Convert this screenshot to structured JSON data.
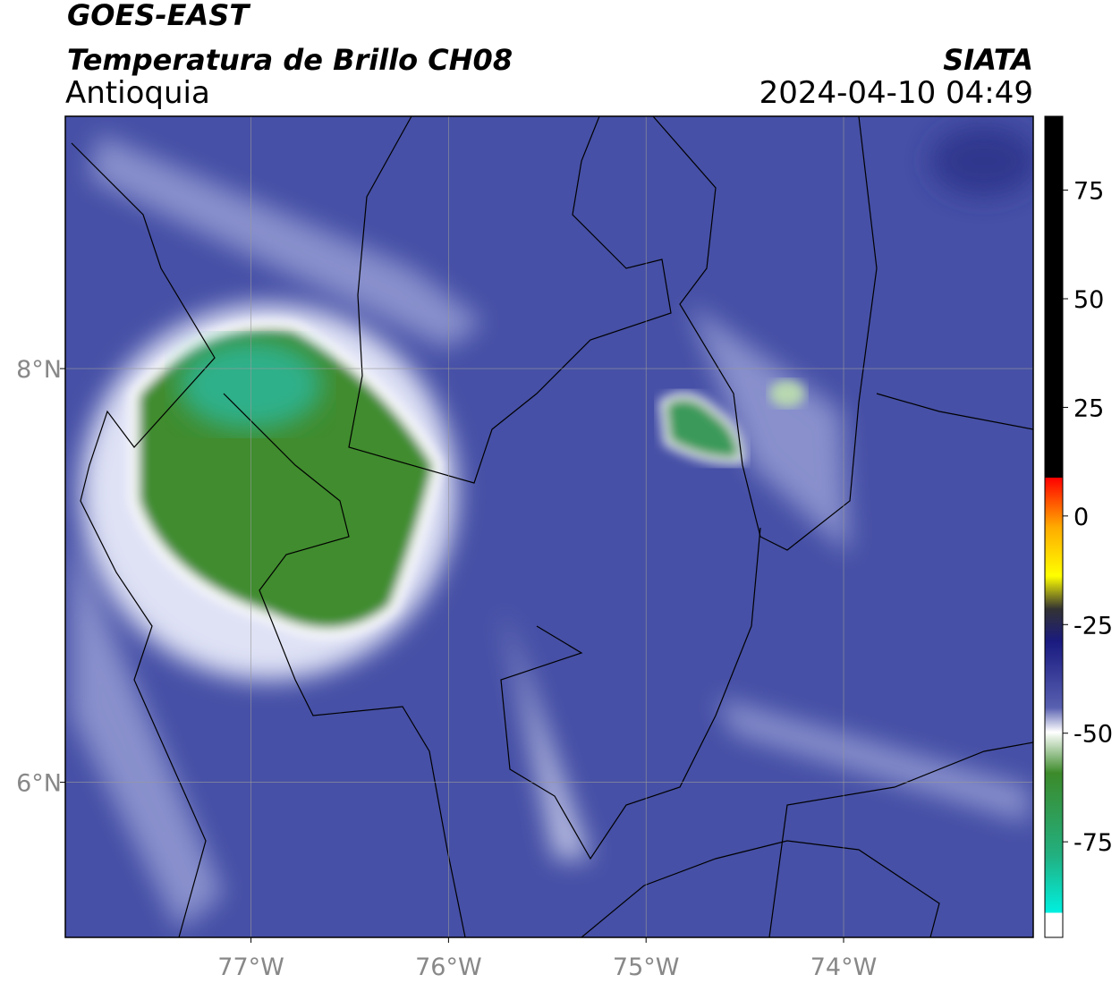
{
  "title": "GOES-EAST",
  "subtitle": "Temperatura de Brillo CH08",
  "region": "Antioquia",
  "agency": "SIATA",
  "datetime": "2024-04-10 04:49",
  "map": {
    "xlim": [
      -77.94,
      -73.04
    ],
    "ylim": [
      5.25,
      9.22
    ],
    "xticks": [
      {
        "value": -77,
        "label": "77°W"
      },
      {
        "value": -76,
        "label": "76°W"
      },
      {
        "value": -75,
        "label": "75°W"
      },
      {
        "value": -74,
        "label": "74°W"
      }
    ],
    "yticks": [
      {
        "value": 8,
        "label": "8°N"
      },
      {
        "value": 6,
        "label": "6°N"
      }
    ],
    "grid": true
  },
  "colorbar": {
    "lim": [
      -97,
      92
    ],
    "ticks": [
      75,
      50,
      25,
      0,
      -25,
      -50,
      -75
    ]
  }
}
